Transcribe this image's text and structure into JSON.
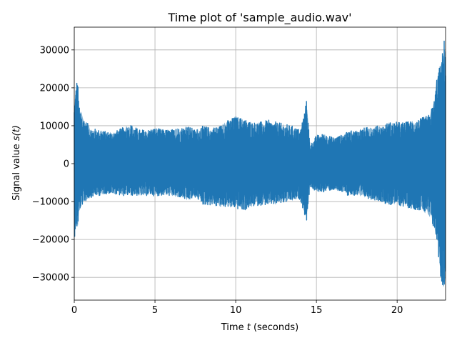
{
  "chart_data": {
    "type": "line",
    "title": "Time plot of 'sample_audio.wav'",
    "xlabel_prefix": "Time ",
    "xlabel_var": "t",
    "xlabel_suffix": " (seconds)",
    "ylabel_prefix": "Signal value ",
    "ylabel_var": "s(t)",
    "xlim": [
      0,
      23
    ],
    "ylim": [
      -36000,
      36000
    ],
    "x_ticks": [
      0,
      5,
      10,
      15,
      20
    ],
    "x_tick_labels": [
      "0",
      "5",
      "10",
      "15",
      "20"
    ],
    "y_ticks": [
      -30000,
      -20000,
      -10000,
      0,
      10000,
      20000,
      30000
    ],
    "y_tick_labels": [
      "−30000",
      "−20000",
      "−10000",
      "0",
      "10000",
      "20000",
      "30000"
    ],
    "grid": true,
    "line_color": "#1f77b4",
    "series": [
      {
        "x": [
          0.0,
          0.1,
          0.2,
          0.3,
          0.4,
          0.5,
          0.7,
          1.0,
          1.5,
          2.0,
          2.5,
          3.0,
          3.5,
          4.0,
          4.5,
          5.0,
          5.5,
          6.0,
          6.5,
          7.0,
          7.5,
          8.0,
          8.5,
          9.0,
          9.5,
          10.0,
          10.5,
          11.0,
          11.5,
          12.0,
          12.5,
          13.0,
          13.5,
          14.0,
          14.4,
          14.6,
          14.8,
          15.0,
          15.5,
          16.0,
          16.5,
          17.0,
          17.5,
          18.0,
          18.5,
          19.0,
          19.5,
          20.0,
          20.5,
          21.0,
          21.5,
          22.0,
          22.3,
          22.5,
          22.7,
          22.9,
          23.0
        ],
        "upper": [
          16000,
          21000,
          23500,
          15000,
          14000,
          13000,
          11500,
          9500,
          9000,
          8500,
          8500,
          9500,
          10500,
          9000,
          9000,
          9500,
          9000,
          9000,
          9500,
          10000,
          9000,
          10000,
          9500,
          10000,
          11500,
          12500,
          12000,
          11000,
          11000,
          11500,
          11000,
          10500,
          10000,
          9000,
          17000,
          5000,
          6000,
          7500,
          8000,
          7000,
          7500,
          8500,
          9000,
          9500,
          10000,
          10000,
          11000,
          11000,
          11000,
          11500,
          12000,
          13000,
          17000,
          25000,
          26000,
          33000,
          32500
        ],
        "lower": [
          -20000,
          -17000,
          -18000,
          -13000,
          -12000,
          -11000,
          -10000,
          -9000,
          -8500,
          -8000,
          -8000,
          -8500,
          -8500,
          -8500,
          -8500,
          -8500,
          -8500,
          -8500,
          -9000,
          -10000,
          -9000,
          -11000,
          -11000,
          -11500,
          -11500,
          -12000,
          -12500,
          -11500,
          -11000,
          -11000,
          -11000,
          -10500,
          -10000,
          -9500,
          -15500,
          -6000,
          -7000,
          -7500,
          -7500,
          -7000,
          -7500,
          -8500,
          -8500,
          -9000,
          -9500,
          -10000,
          -11000,
          -11000,
          -11500,
          -12000,
          -12500,
          -14000,
          -18000,
          -21500,
          -31500,
          -33000,
          -33000
        ]
      }
    ]
  }
}
